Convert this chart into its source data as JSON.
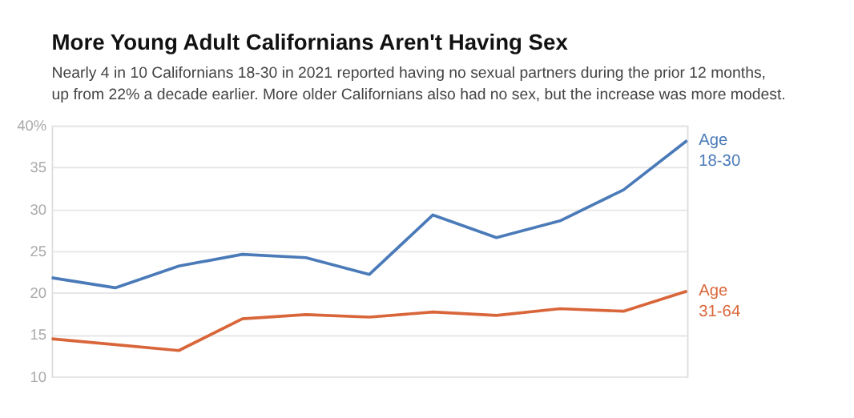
{
  "chart_data": {
    "type": "line",
    "title": "More Young Adult Californians Aren't Having Sex",
    "subtitle": "Nearly 4 in 10 Californians 18-30 in 2021 reported having no sexual partners during the prior 12 months, up from 22% a decade earlier. More older Californians also had no sex, but the increase was more modest.",
    "categories": [
      null,
      null,
      null,
      null,
      null,
      null,
      null,
      null,
      null,
      null,
      null
    ],
    "series": [
      {
        "name": "Age 18-30",
        "color": "#4a7ab8",
        "values": [
          21.8,
          20.6,
          23.2,
          24.6,
          24.2,
          22.2,
          29.3,
          26.6,
          28.6,
          32.3,
          38.2
        ]
      },
      {
        "name": "Age 31-64",
        "color": "#d9663a",
        "values": [
          14.5,
          13.8,
          13.1,
          16.9,
          17.4,
          17.1,
          17.7,
          17.3,
          18.1,
          17.8,
          20.2
        ]
      }
    ],
    "ylim": [
      10,
      40
    ],
    "yticks": [
      10,
      15,
      20,
      25,
      30,
      35,
      {
        "value": 40,
        "label": "40%"
      }
    ],
    "grid": "y",
    "legend": false,
    "marker": "none",
    "line_style": "solid",
    "tick_labels": "y"
  }
}
